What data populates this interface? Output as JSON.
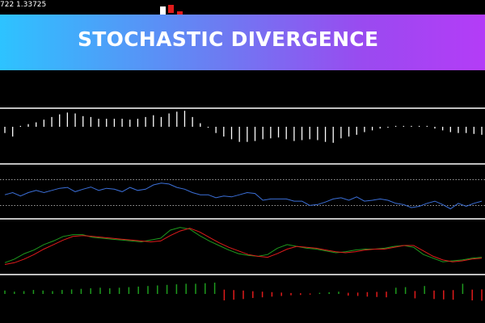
{
  "header": {
    "price_readout": "722 1.33725"
  },
  "banner": {
    "title": "STOCHASTIC DIVERGENCE",
    "gradient_colors": [
      "#2dc3ff",
      "#6c7cf2",
      "#9a4af0",
      "#b43cf7"
    ]
  },
  "colors": {
    "background": "#000000",
    "separator": "#ffffff",
    "histogram": "#ffffff",
    "blue_line": "#3b6fd8",
    "level_dots": "#cfcfcf",
    "main_line": "#1e9a1e",
    "signal_line": "#e01b1b",
    "bar_up": "#1e9a1e",
    "bar_down": "#e01b1b",
    "candle_up": "#ffffff",
    "candle_down": "#e01b1b"
  },
  "chart_data": [
    {
      "type": "bar",
      "panel": "histogram",
      "values": [
        -0.35,
        -0.55,
        0.05,
        0.15,
        0.25,
        0.4,
        0.55,
        0.7,
        0.8,
        0.75,
        0.6,
        0.55,
        0.45,
        0.45,
        0.45,
        0.45,
        0.4,
        0.45,
        0.55,
        0.65,
        0.55,
        0.75,
        0.85,
        0.9,
        0.55,
        0.2,
        -0.05,
        -0.35,
        -0.55,
        -0.7,
        -0.85,
        -0.85,
        -0.8,
        -0.7,
        -0.65,
        -0.6,
        -0.7,
        -0.8,
        -0.75,
        -0.7,
        -0.75,
        -0.85,
        -0.9,
        -0.65,
        -0.55,
        -0.45,
        -0.3,
        -0.2,
        -0.1,
        -0.05,
        0.05,
        0.05,
        0.05,
        0.05,
        0.05,
        -0.1,
        -0.2,
        -0.3,
        -0.35,
        -0.35,
        -0.4,
        -0.45
      ]
    },
    {
      "type": "line",
      "panel": "blue-oscillator",
      "levels": [
        0.8,
        0.2
      ],
      "values": [
        0.45,
        0.5,
        0.42,
        0.5,
        0.55,
        0.5,
        0.55,
        0.6,
        0.62,
        0.52,
        0.58,
        0.63,
        0.55,
        0.6,
        0.58,
        0.52,
        0.62,
        0.55,
        0.58,
        0.68,
        0.72,
        0.7,
        0.62,
        0.58,
        0.5,
        0.45,
        0.45,
        0.38,
        0.42,
        0.4,
        0.45,
        0.5,
        0.48,
        0.32,
        0.35,
        0.35,
        0.35,
        0.3,
        0.3,
        0.2,
        0.22,
        0.28,
        0.35,
        0.38,
        0.32,
        0.4,
        0.3,
        0.32,
        0.35,
        0.32,
        0.25,
        0.22,
        0.15,
        0.18,
        0.25,
        0.3,
        0.22,
        0.12,
        0.25,
        0.18,
        0.25,
        0.3
      ]
    },
    {
      "type": "line",
      "panel": "stochastic",
      "series": [
        {
          "values": [
            0.12,
            0.2,
            0.32,
            0.4,
            0.52,
            0.6,
            0.7,
            0.74,
            0.74,
            0.68,
            0.66,
            0.64,
            0.62,
            0.6,
            0.58,
            0.62,
            0.66,
            0.84,
            0.9,
            0.86,
            0.72,
            0.6,
            0.5,
            0.4,
            0.32,
            0.28,
            0.26,
            0.3,
            0.44,
            0.52,
            0.48,
            0.44,
            0.42,
            0.38,
            0.34,
            0.36,
            0.4,
            0.42,
            0.42,
            0.44,
            0.48,
            0.5,
            0.46,
            0.3,
            0.22,
            0.14,
            0.16,
            0.18,
            0.22,
            0.24
          ]
        },
        {
          "values": [
            0.08,
            0.12,
            0.2,
            0.3,
            0.42,
            0.52,
            0.62,
            0.7,
            0.72,
            0.7,
            0.68,
            0.66,
            0.64,
            0.62,
            0.6,
            0.58,
            0.6,
            0.72,
            0.82,
            0.88,
            0.8,
            0.68,
            0.56,
            0.46,
            0.38,
            0.3,
            0.26,
            0.24,
            0.32,
            0.42,
            0.48,
            0.46,
            0.44,
            0.4,
            0.36,
            0.34,
            0.36,
            0.4,
            0.42,
            0.42,
            0.46,
            0.5,
            0.5,
            0.38,
            0.26,
            0.18,
            0.14,
            0.16,
            0.2,
            0.22
          ]
        }
      ]
    },
    {
      "type": "bar",
      "panel": "divergence-bars",
      "values": [
        0.3,
        0.2,
        0.25,
        0.35,
        0.3,
        0.25,
        0.35,
        0.4,
        0.45,
        0.5,
        0.55,
        0.5,
        0.55,
        0.6,
        0.65,
        0.7,
        0.75,
        0.8,
        0.85,
        0.9,
        0.9,
        0.95,
        1.0,
        -0.95,
        -0.85,
        -0.75,
        -0.6,
        -0.5,
        -0.4,
        -0.3,
        -0.2,
        -0.15,
        -0.1,
        0.1,
        0.15,
        0.2,
        -0.25,
        -0.3,
        -0.4,
        -0.45,
        -0.5,
        0.55,
        0.6,
        -0.65,
        0.7,
        -0.75,
        -0.8,
        -0.85,
        0.9,
        -0.95,
        -1.0
      ]
    }
  ],
  "price_candles": [
    {
      "direction": "up"
    },
    {
      "direction": "down"
    },
    {
      "direction": "down"
    }
  ]
}
